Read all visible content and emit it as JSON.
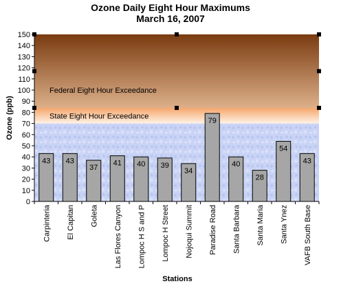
{
  "chart_data": {
    "type": "bar",
    "title": "Ozone Daily Eight Hour Maximums",
    "subtitle": "March 16, 2007",
    "xlabel": "Stations",
    "ylabel": "Ozone (ppb)",
    "ylim": [
      0,
      150
    ],
    "yticks": [
      0,
      10,
      20,
      30,
      40,
      50,
      60,
      70,
      80,
      90,
      100,
      110,
      120,
      130,
      140,
      150
    ],
    "grid": false,
    "legend": "none",
    "categories": [
      "Carpinteria",
      "El Capitan",
      "Goleta",
      "Las Flores Canyon",
      "Lompoc H S and P",
      "Lompoc H Street",
      "Nojoqui Summit",
      "Paradise Road",
      "Santa Barbara",
      "Santa Maria",
      "Santa Ynez",
      "VAFB South Base"
    ],
    "values": [
      43,
      43,
      37,
      41,
      40,
      39,
      34,
      79,
      40,
      28,
      54,
      43
    ],
    "bands": [
      {
        "label": "Federal Eight Hour Exceedance",
        "from": 84,
        "to": 150,
        "color_top": "#7a3b10",
        "color_bottom": "#dcb08a"
      },
      {
        "label": "State Eight Hour Exceedance",
        "from": 70,
        "to": 84,
        "color_top": "#f5a66a",
        "color_bottom": "#fff2e6"
      }
    ],
    "bar_color": "#a6a6a6",
    "background_color": "#c9d3f5"
  }
}
